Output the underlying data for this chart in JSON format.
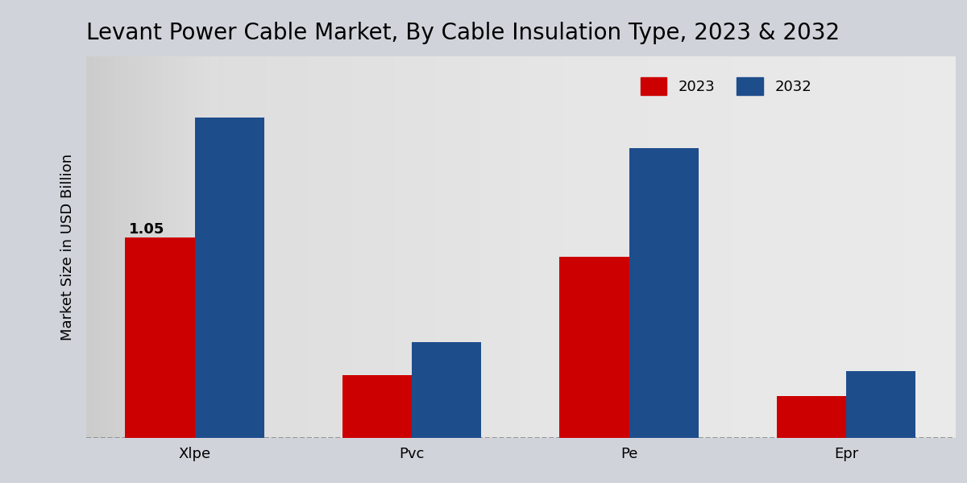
{
  "title": "Levant Power Cable Market, By Cable Insulation Type, 2023 & 2032",
  "ylabel": "Market Size in USD Billion",
  "categories": [
    "Xlpe",
    "Pvc",
    "Pe",
    "Epr"
  ],
  "values_2023": [
    1.05,
    0.33,
    0.95,
    0.22
  ],
  "values_2032": [
    1.68,
    0.5,
    1.52,
    0.35
  ],
  "color_2023": "#cc0000",
  "color_2032": "#1e4d8c",
  "bar_annotation": "1.05",
  "bar_annotation_index": 0,
  "background_left": "#c8c8cc",
  "background_right": "#e8e8ea",
  "background_center": "#f0f0f2",
  "title_fontsize": 20,
  "ylabel_fontsize": 13,
  "tick_fontsize": 13,
  "legend_fontsize": 13,
  "annotation_fontsize": 13,
  "bar_width": 0.32,
  "ylim": [
    0,
    2.0
  ]
}
